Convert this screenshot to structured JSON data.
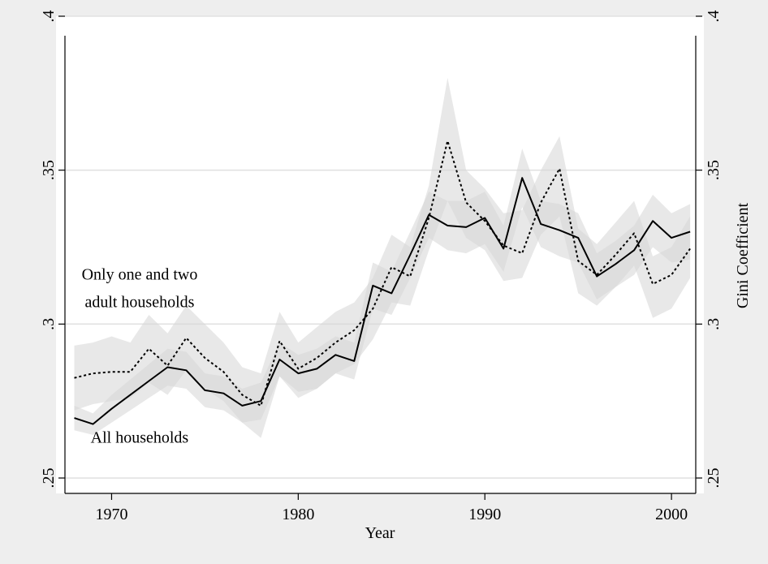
{
  "chart_data": {
    "type": "line",
    "xlabel": "Year",
    "ylabel_right": "Gini Coefficient",
    "xlim": [
      1967.5,
      2001.3
    ],
    "ylim": [
      0.245,
      0.4
    ],
    "x_ticks": [
      1970,
      1980,
      1990,
      2000
    ],
    "x_tick_labels": [
      "1970",
      "1980",
      "1990",
      "2000"
    ],
    "y_ticks": [
      0.25,
      0.3,
      0.35,
      0.4
    ],
    "y_tick_labels": [
      ".25",
      ".3",
      ".35",
      ".4"
    ],
    "grid": "horizontal",
    "annotations": [
      {
        "text": "Only one and two",
        "x": 1971.5,
        "y": 0.3145
      },
      {
        "text": "adult households",
        "x": 1971.5,
        "y": 0.3055
      },
      {
        "text": "All households",
        "x": 1971.5,
        "y": 0.2615
      }
    ],
    "x": [
      1968,
      1969,
      1970,
      1971,
      1972,
      1973,
      1974,
      1975,
      1976,
      1977,
      1978,
      1979,
      1980,
      1981,
      1982,
      1983,
      1984,
      1985,
      1986,
      1987,
      1988,
      1989,
      1990,
      1991,
      1992,
      1993,
      1994,
      1995,
      1996,
      1997,
      1998,
      1999,
      2000,
      2001
    ],
    "series": [
      {
        "style": "solid",
        "values": [
          0.2695,
          0.2675,
          0.2725,
          0.277,
          0.2815,
          0.286,
          0.285,
          0.2785,
          0.2775,
          0.2735,
          0.275,
          0.2885,
          0.284,
          0.2855,
          0.29,
          0.288,
          0.3125,
          0.31,
          0.3225,
          0.3355,
          0.332,
          0.3315,
          0.3345,
          0.3245,
          0.3475,
          0.3325,
          0.3305,
          0.328,
          0.3155,
          0.3195,
          0.324,
          0.3335,
          0.328,
          0.33
        ],
        "band_low": [
          0.2655,
          0.264,
          0.268,
          0.272,
          0.276,
          0.28,
          0.279,
          0.273,
          0.272,
          0.268,
          0.269,
          0.283,
          0.278,
          0.279,
          0.284,
          0.282,
          0.305,
          0.303,
          0.315,
          0.328,
          0.324,
          0.323,
          0.326,
          0.317,
          0.338,
          0.325,
          0.322,
          0.32,
          0.308,
          0.312,
          0.316,
          0.325,
          0.32,
          0.321
        ],
        "band_high": [
          0.2735,
          0.271,
          0.277,
          0.282,
          0.287,
          0.292,
          0.291,
          0.284,
          0.283,
          0.279,
          0.281,
          0.294,
          0.29,
          0.292,
          0.296,
          0.294,
          0.32,
          0.317,
          0.33,
          0.343,
          0.34,
          0.34,
          0.343,
          0.332,
          0.357,
          0.34,
          0.339,
          0.336,
          0.323,
          0.327,
          0.332,
          0.342,
          0.336,
          0.339
        ]
      },
      {
        "style": "dotted",
        "values": [
          0.2825,
          0.284,
          0.2845,
          0.2845,
          0.292,
          0.2865,
          0.2955,
          0.289,
          0.2845,
          0.277,
          0.2735,
          0.2945,
          0.2855,
          0.289,
          0.294,
          0.298,
          0.305,
          0.3185,
          0.3155,
          0.3345,
          0.3595,
          0.3395,
          0.3335,
          0.3255,
          0.323,
          0.3395,
          0.3505,
          0.3205,
          0.316,
          0.3225,
          0.3295,
          0.313,
          0.316,
          0.3245
        ],
        "band_low": [
          0.272,
          0.274,
          0.275,
          0.276,
          0.281,
          0.277,
          0.285,
          0.279,
          0.275,
          0.268,
          0.263,
          0.283,
          0.276,
          0.279,
          0.284,
          0.287,
          0.295,
          0.307,
          0.306,
          0.324,
          0.34,
          0.328,
          0.324,
          0.314,
          0.315,
          0.329,
          0.335,
          0.31,
          0.306,
          0.312,
          0.319,
          0.302,
          0.305,
          0.315
        ],
        "band_high": [
          0.293,
          0.294,
          0.296,
          0.294,
          0.303,
          0.297,
          0.306,
          0.3,
          0.294,
          0.286,
          0.284,
          0.304,
          0.294,
          0.299,
          0.304,
          0.307,
          0.315,
          0.329,
          0.325,
          0.345,
          0.38,
          0.35,
          0.344,
          0.336,
          0.337,
          0.35,
          0.361,
          0.331,
          0.326,
          0.333,
          0.34,
          0.322,
          0.325,
          0.335
        ]
      }
    ]
  }
}
